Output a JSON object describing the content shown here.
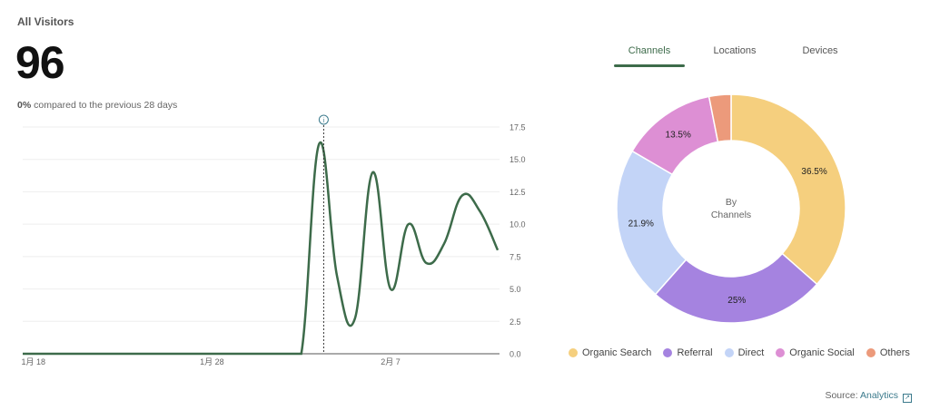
{
  "header": {
    "title": "All Visitors",
    "total": "96",
    "compare_value": "0%",
    "compare_text": "compared to the previous 28 days"
  },
  "tabs": [
    {
      "label": "Channels",
      "active": true
    },
    {
      "label": "Locations",
      "active": false
    },
    {
      "label": "Devices",
      "active": false
    }
  ],
  "source": {
    "label": "Source:",
    "link": "Analytics"
  },
  "colors": {
    "line": "#3d6b4a",
    "accent": "#3d6b4a"
  },
  "chart_data": [
    {
      "type": "line",
      "title": "All Visitors",
      "ylim": [
        0,
        17.5
      ],
      "yticks": [
        "0.0",
        "2.5",
        "5.0",
        "7.5",
        "10.0",
        "12.5",
        "15.0",
        "17.5"
      ],
      "xtick_labels": [
        {
          "label": "1月 18",
          "day": 0
        },
        {
          "label": "1月 28",
          "day": 10
        },
        {
          "label": "2月 7",
          "day": 20
        }
      ],
      "xdomain": [
        -0.6,
        26.1
      ],
      "highlight_day": 16,
      "x": [
        -0.6,
        0,
        1,
        2,
        3,
        4,
        5,
        6,
        7,
        8,
        9,
        10,
        11,
        12,
        13,
        14,
        15,
        16,
        17,
        18,
        19,
        20,
        21,
        22,
        23,
        24,
        25,
        26
      ],
      "values": [
        0,
        0,
        0,
        0,
        0,
        0,
        0,
        0,
        0,
        0,
        0,
        0,
        0,
        0,
        0,
        0,
        0,
        16.2,
        6,
        2.7,
        14,
        5,
        10,
        7,
        8.5,
        12.2,
        11,
        8
      ]
    },
    {
      "type": "pie",
      "center_label": "By",
      "center_label2": "Channels",
      "slices": [
        {
          "name": "Organic Search",
          "value": 36.5,
          "label": "36.5%",
          "color": "#f5cf7e"
        },
        {
          "name": "Referral",
          "value": 25,
          "label": "25%",
          "color": "#a583e0"
        },
        {
          "name": "Direct",
          "value": 21.9,
          "label": "21.9%",
          "color": "#c3d4f7"
        },
        {
          "name": "Organic Social",
          "value": 13.5,
          "label": "13.5%",
          "color": "#dd8fd4"
        },
        {
          "name": "Others",
          "value": 3.1,
          "label": "",
          "color": "#ec9a7b"
        }
      ]
    }
  ]
}
